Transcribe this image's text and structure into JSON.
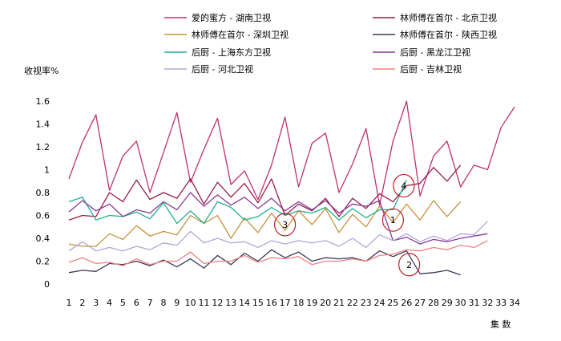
{
  "chart_data": {
    "type": "line",
    "title": "",
    "ylabel": "收视率%",
    "xlabel": "集  数",
    "ylim": [
      0,
      1.6
    ],
    "yticks": [
      "0",
      "0.2",
      "0.4",
      "0.6",
      "0.8",
      "1",
      "1.2",
      "1.4",
      "1.6"
    ],
    "x": [
      1,
      2,
      3,
      4,
      5,
      6,
      7,
      8,
      9,
      10,
      11,
      12,
      13,
      14,
      15,
      16,
      17,
      18,
      19,
      20,
      21,
      22,
      23,
      24,
      25,
      26,
      27,
      28,
      29,
      30,
      31,
      32,
      33,
      34
    ],
    "grid": false,
    "legend_position": "top",
    "series": [
      {
        "name": "爱的蜜方 - 湖南卫视",
        "color": "#c0306e",
        "values": [
          0.92,
          1.24,
          1.48,
          0.82,
          1.12,
          1.25,
          0.8,
          1.15,
          1.5,
          0.89,
          1.18,
          1.45,
          0.87,
          0.99,
          0.74,
          1.04,
          1.46,
          0.85,
          1.23,
          1.32,
          0.8,
          1.05,
          1.36,
          0.69,
          1.25,
          1.6,
          0.77,
          1.12,
          1.25,
          0.85,
          1.04,
          1.0,
          1.37,
          1.55
        ]
      },
      {
        "name": "林师傅在首尔 - 北京卫视",
        "color": "#9a1e4e",
        "values": [
          0.56,
          0.6,
          0.59,
          0.8,
          0.72,
          0.91,
          0.74,
          0.8,
          0.75,
          0.92,
          0.7,
          0.89,
          0.76,
          0.88,
          0.71,
          0.92,
          0.6,
          0.7,
          0.64,
          0.75,
          0.59,
          0.75,
          0.66,
          0.79,
          0.72,
          0.86,
          0.88,
          1.02,
          0.9,
          1.04,
          null,
          null,
          null,
          null
        ]
      },
      {
        "name": "林师傅在首尔 - 深圳卫视",
        "color": "#c8923c",
        "values": [
          0.35,
          0.33,
          0.33,
          0.44,
          0.39,
          0.51,
          0.42,
          0.46,
          0.43,
          0.6,
          0.53,
          0.6,
          0.4,
          0.58,
          0.45,
          0.62,
          0.47,
          0.64,
          0.52,
          0.66,
          0.45,
          0.61,
          0.5,
          0.68,
          0.54,
          0.7,
          0.56,
          0.73,
          0.59,
          0.72,
          null,
          null,
          null,
          null
        ]
      },
      {
        "name": "林师傅在首尔 - 陕西卫视",
        "color": "#3a3a5a",
        "values": [
          0.1,
          0.12,
          0.11,
          0.18,
          0.17,
          0.2,
          0.16,
          0.21,
          0.15,
          0.22,
          0.14,
          0.25,
          0.17,
          0.27,
          0.2,
          0.3,
          0.23,
          0.28,
          0.2,
          0.23,
          0.22,
          0.23,
          0.2,
          0.29,
          0.24,
          0.29,
          0.09,
          0.1,
          0.12,
          0.08,
          null,
          null,
          null,
          null
        ]
      },
      {
        "name": "后厨 - 上海东方卫视",
        "color": "#20b090",
        "values": [
          0.72,
          0.76,
          0.56,
          0.6,
          0.59,
          0.63,
          0.57,
          0.71,
          0.53,
          0.64,
          0.53,
          0.72,
          0.67,
          0.56,
          0.59,
          0.67,
          0.6,
          0.64,
          0.62,
          0.67,
          0.56,
          0.66,
          0.58,
          0.65,
          0.65,
          0.91,
          null,
          null,
          null,
          null,
          null,
          null,
          null,
          null
        ]
      },
      {
        "name": "后厨 - 黑龙江卫视",
        "color": "#8a3a9a",
        "values": [
          0.63,
          0.73,
          0.64,
          0.7,
          0.59,
          0.65,
          0.62,
          0.72,
          0.65,
          0.8,
          0.68,
          0.78,
          0.69,
          0.76,
          0.66,
          0.75,
          0.64,
          0.72,
          0.65,
          0.73,
          0.62,
          0.7,
          0.68,
          0.73,
          0.38,
          0.41,
          0.35,
          0.39,
          0.37,
          0.4,
          0.42,
          0.44,
          null,
          null
        ]
      },
      {
        "name": "后厨 - 河北卫视",
        "color": "#b0a8d8",
        "values": [
          0.29,
          0.37,
          0.29,
          0.32,
          0.29,
          0.33,
          0.3,
          0.36,
          0.34,
          0.46,
          0.36,
          0.4,
          0.36,
          0.37,
          0.32,
          0.38,
          0.35,
          0.38,
          0.36,
          0.38,
          0.33,
          0.4,
          0.32,
          0.43,
          0.38,
          0.44,
          0.37,
          0.42,
          0.38,
          0.44,
          0.43,
          0.55,
          null,
          null
        ]
      },
      {
        "name": "后厨 - 吉林卫视",
        "color": "#f08080",
        "values": [
          0.19,
          0.23,
          0.18,
          0.19,
          0.16,
          0.22,
          0.17,
          0.2,
          0.2,
          0.28,
          0.18,
          0.2,
          0.2,
          0.25,
          0.19,
          0.23,
          0.22,
          0.24,
          0.17,
          0.2,
          0.2,
          0.22,
          0.2,
          0.25,
          0.26,
          0.3,
          0.29,
          0.32,
          0.3,
          0.34,
          0.32,
          0.38,
          null,
          null
        ]
      }
    ],
    "annotations": [
      {
        "label": "1",
        "x": 25,
        "y": 0.56
      },
      {
        "label": "2",
        "x": 26.2,
        "y": 0.17
      },
      {
        "label": "3",
        "x": 17,
        "y": 0.52
      },
      {
        "label": "4",
        "x": 25.8,
        "y": 0.86
      }
    ]
  }
}
